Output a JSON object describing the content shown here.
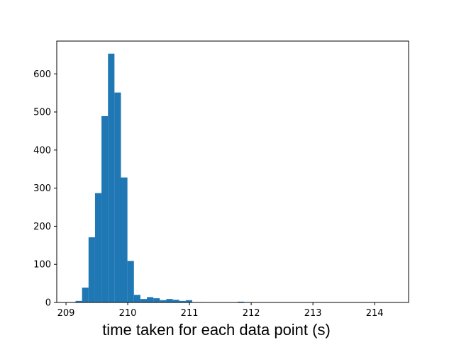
{
  "chart_data": {
    "type": "bar",
    "title": "",
    "xlabel": "time taken for each data point (s)",
    "ylabel": "",
    "xlim": [
      208.85,
      214.55
    ],
    "ylim": [
      0,
      686
    ],
    "xticks": [
      209,
      210,
      211,
      212,
      213,
      214
    ],
    "yticks": [
      0,
      100,
      200,
      300,
      400,
      500,
      600
    ],
    "bin_width": 0.105,
    "bar_color": "#1f77b4",
    "grid": false,
    "legend": "none",
    "bins": [
      {
        "x0": 209.05,
        "count": 1
      },
      {
        "x0": 209.155,
        "count": 4
      },
      {
        "x0": 209.26,
        "count": 39
      },
      {
        "x0": 209.365,
        "count": 171
      },
      {
        "x0": 209.47,
        "count": 287
      },
      {
        "x0": 209.575,
        "count": 489
      },
      {
        "x0": 209.68,
        "count": 653
      },
      {
        "x0": 209.785,
        "count": 551
      },
      {
        "x0": 209.89,
        "count": 328
      },
      {
        "x0": 209.995,
        "count": 109
      },
      {
        "x0": 210.1,
        "count": 20
      },
      {
        "x0": 210.205,
        "count": 9
      },
      {
        "x0": 210.31,
        "count": 14
      },
      {
        "x0": 210.415,
        "count": 11
      },
      {
        "x0": 210.52,
        "count": 6
      },
      {
        "x0": 210.625,
        "count": 9
      },
      {
        "x0": 210.73,
        "count": 7
      },
      {
        "x0": 210.835,
        "count": 4
      },
      {
        "x0": 210.94,
        "count": 6
      },
      {
        "x0": 211.045,
        "count": 1
      },
      {
        "x0": 211.15,
        "count": 1
      },
      {
        "x0": 211.78,
        "count": 2
      },
      {
        "x0": 211.885,
        "count": 1
      }
    ]
  }
}
